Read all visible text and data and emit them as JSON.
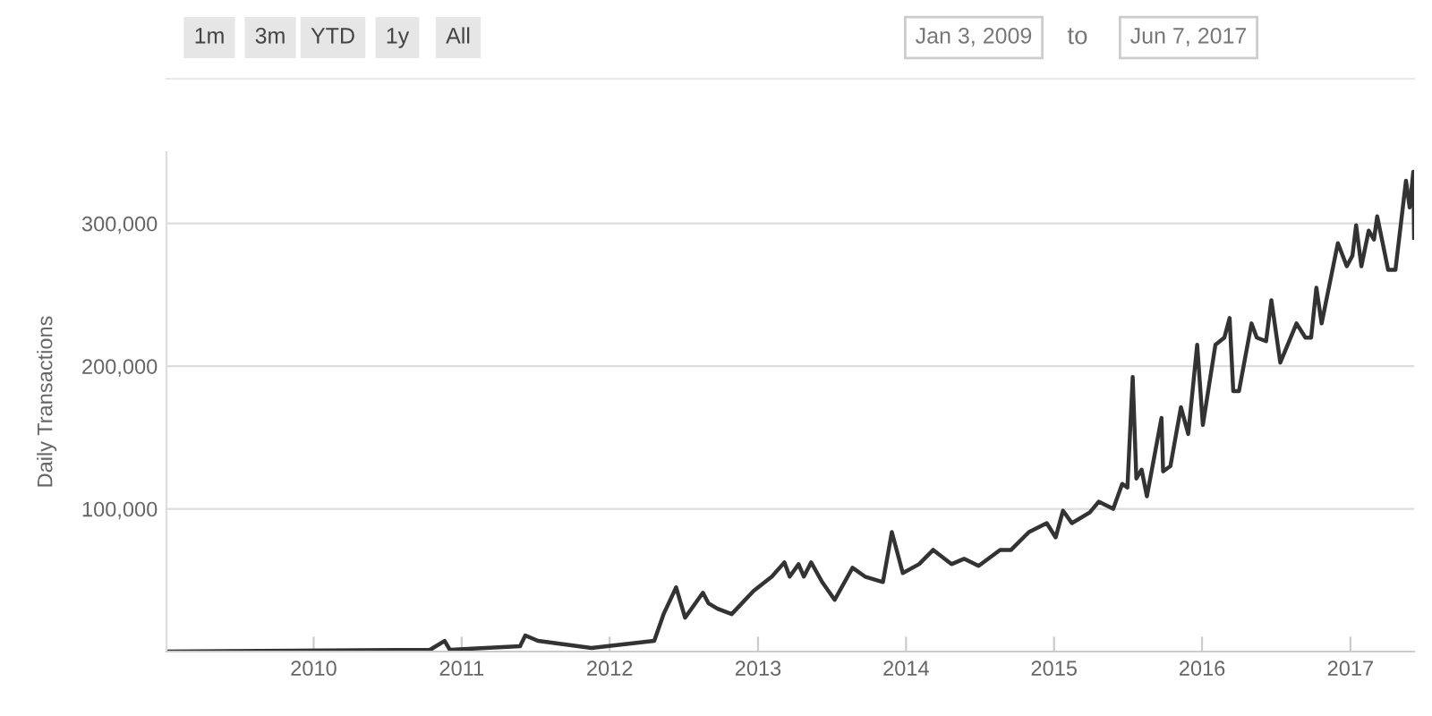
{
  "chart_data": {
    "type": "line",
    "ylabel": "Daily Transactions",
    "annotations": [
      "1m",
      "3m",
      "YTD",
      "1y",
      "All",
      "Jan 3, 2009",
      "to",
      "Jun 7, 2017"
    ],
    "x": [
      "2009-01-03",
      "2010-10-15",
      "2010-11-20",
      "2010-12-03",
      "2011-05-25",
      "2011-06-07",
      "2011-07-08",
      "2011-11-17",
      "2012-04-20",
      "2012-05-13",
      "2012-06-13",
      "2012-07-05",
      "2012-07-27",
      "2012-08-18",
      "2012-09-01",
      "2012-09-23",
      "2012-10-28",
      "2012-12-21",
      "2013-02-04",
      "2013-03-07",
      "2013-03-20",
      "2013-04-11",
      "2013-04-24",
      "2013-05-12",
      "2013-06-08",
      "2013-07-09",
      "2013-08-22",
      "2013-09-22",
      "2013-11-05",
      "2013-11-27",
      "2013-12-24",
      "2014-02-02",
      "2014-03-09",
      "2014-04-23",
      "2014-05-24",
      "2014-06-29",
      "2014-08-21",
      "2014-09-17",
      "2014-10-31",
      "2014-12-14",
      "2015-01-05",
      "2015-01-23",
      "2015-02-14",
      "2015-03-30",
      "2015-04-21",
      "2015-05-27",
      "2015-06-18",
      "2015-07-01",
      "2015-07-14",
      "2015-07-23",
      "2015-08-05",
      "2015-08-18",
      "2015-09-23",
      "2015-09-27",
      "2015-10-15",
      "2015-11-10",
      "2015-11-28",
      "2015-12-20",
      "2016-01-03",
      "2016-02-03",
      "2016-02-25",
      "2016-03-09",
      "2016-03-18",
      "2016-04-01",
      "2016-05-02",
      "2016-05-15",
      "2016-06-07",
      "2016-06-20",
      "2016-07-12",
      "2016-08-21",
      "2016-09-12",
      "2016-09-26",
      "2016-10-09",
      "2016-10-22",
      "2016-12-01",
      "2016-12-23",
      "2017-01-06",
      "2017-01-15",
      "2017-01-28",
      "2017-02-15",
      "2017-02-28",
      "2017-03-08",
      "2017-04-04",
      "2017-04-22",
      "2017-05-18",
      "2017-05-27",
      "2017-06-05",
      "2017-06-07"
    ],
    "series": [
      {
        "color": "#333333",
        "values": [
          0,
          1250,
          7500,
          1250,
          3750,
          11250,
          7500,
          2500,
          7500,
          26250,
          45000,
          23750,
          32500,
          41250,
          33750,
          30000,
          26250,
          42500,
          52500,
          62500,
          52500,
          61250,
          52500,
          62500,
          48750,
          36250,
          58750,
          52500,
          48750,
          83750,
          55000,
          61250,
          71250,
          61250,
          65000,
          60000,
          71250,
          71250,
          83750,
          90000,
          80000,
          98750,
          90000,
          97500,
          105000,
          100000,
          117500,
          115000,
          192500,
          121250,
          127500,
          108750,
          163750,
          126250,
          130000,
          171250,
          152500,
          215000,
          158750,
          215000,
          220000,
          233750,
          182500,
          182500,
          230000,
          220000,
          217500,
          246250,
          202500,
          230000,
          220000,
          220000,
          255000,
          230000,
          286250,
          270000,
          277500,
          298750,
          270000,
          295000,
          288750,
          305000,
          267500,
          267500,
          330000,
          311250,
          336250,
          290000
        ]
      }
    ],
    "xlim": [
      "2009-01-03",
      "2017-06-07"
    ],
    "xticks": [
      {
        "value": "2010-01-01",
        "label": "2010"
      },
      {
        "value": "2011-01-01",
        "label": "2011"
      },
      {
        "value": "2012-01-01",
        "label": "2012"
      },
      {
        "value": "2013-01-01",
        "label": "2013"
      },
      {
        "value": "2014-01-01",
        "label": "2014"
      },
      {
        "value": "2015-01-01",
        "label": "2015"
      },
      {
        "value": "2016-01-01",
        "label": "2016"
      },
      {
        "value": "2017-01-01",
        "label": "2017"
      }
    ],
    "yticks": [
      {
        "value": 100000,
        "label": "100,000"
      },
      {
        "value": 200000,
        "label": "200,000"
      },
      {
        "value": 300000,
        "label": "300,000"
      }
    ],
    "ylim": [
      0,
      350000
    ],
    "grid": "y",
    "marker": "none",
    "line_style": "solid",
    "legend": false
  }
}
